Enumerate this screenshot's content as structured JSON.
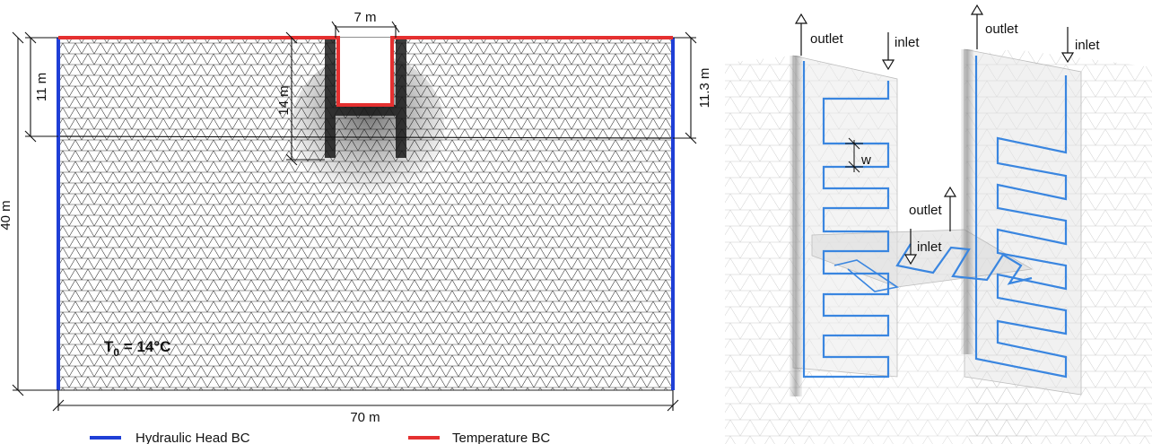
{
  "left_panel": {
    "dims": {
      "top_width": "7 m",
      "left_upper": "11 m",
      "left_total": "40 m",
      "inner_depth": "14 m",
      "right_upper": "11.3 m",
      "bottom_width": "70 m"
    },
    "t0": {
      "base": "T",
      "sub": "0",
      "rest": " = 14°C"
    },
    "legend": [
      {
        "label": "Hydraulic Head BC",
        "color": "#1f3fd6"
      },
      {
        "label": "Temperature BC",
        "color": "#e53030"
      }
    ]
  },
  "right_panel": {
    "labels": {
      "outlet_left": "outlet",
      "inlet_left": "inlet",
      "outlet_right": "outlet",
      "inlet_right": "inlet",
      "outlet_slab": "outlet",
      "inlet_slab": "inlet",
      "w": "w"
    },
    "pipe_color": "#3a86e0"
  },
  "colors": {
    "mesh": "#2a2a2a",
    "hydraulic": "#1f3fd6",
    "temperature": "#e53030"
  }
}
